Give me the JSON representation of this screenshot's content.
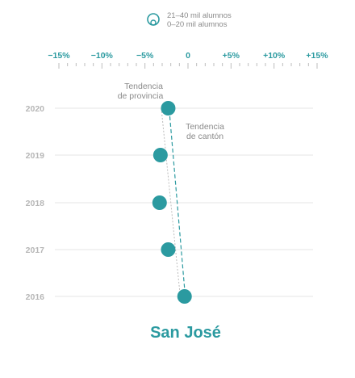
{
  "legend": {
    "large_label": "21–40 mil alumnos",
    "small_label": "0–20 mil alumnos"
  },
  "annotations": {
    "province_line1": "Tendencia",
    "province_line2": "de provincia",
    "canton_line1": "Tendencia",
    "canton_line2": "de cantón"
  },
  "colors": {
    "accent": "#2b9aa0",
    "province_trend": "#bdbdbd",
    "grid": "#e6e6e6",
    "year_label": "#b7b7b7"
  },
  "chart_data": {
    "type": "scatter",
    "title": "San José",
    "x_tick_labels": [
      "−15%",
      "−10%",
      "−5%",
      "0",
      "+5%",
      "+10%",
      "+15%"
    ],
    "x_ticks": [
      -15,
      -10,
      -5,
      0,
      5,
      10,
      15
    ],
    "xlim": [
      -15,
      15
    ],
    "x_minor_step": 1,
    "y_categories": [
      "2020",
      "2019",
      "2018",
      "2017",
      "2016"
    ],
    "series": [
      {
        "category": "21–40 mil alumnos",
        "points": [
          {
            "year": "2020",
            "x": -2.3
          },
          {
            "year": "2019",
            "x": -3.2
          },
          {
            "year": "2018",
            "x": -3.3
          },
          {
            "year": "2017",
            "x": -2.3
          },
          {
            "year": "2016",
            "x": -0.4
          }
        ]
      }
    ],
    "canton_trend": [
      {
        "year": "2020",
        "x": -2.3
      },
      {
        "year": "2016",
        "x": -0.4
      }
    ],
    "province_trend": [
      {
        "year": "2020",
        "x": -3.1
      },
      {
        "year": "2016",
        "x": -0.9
      }
    ],
    "grid": true
  }
}
